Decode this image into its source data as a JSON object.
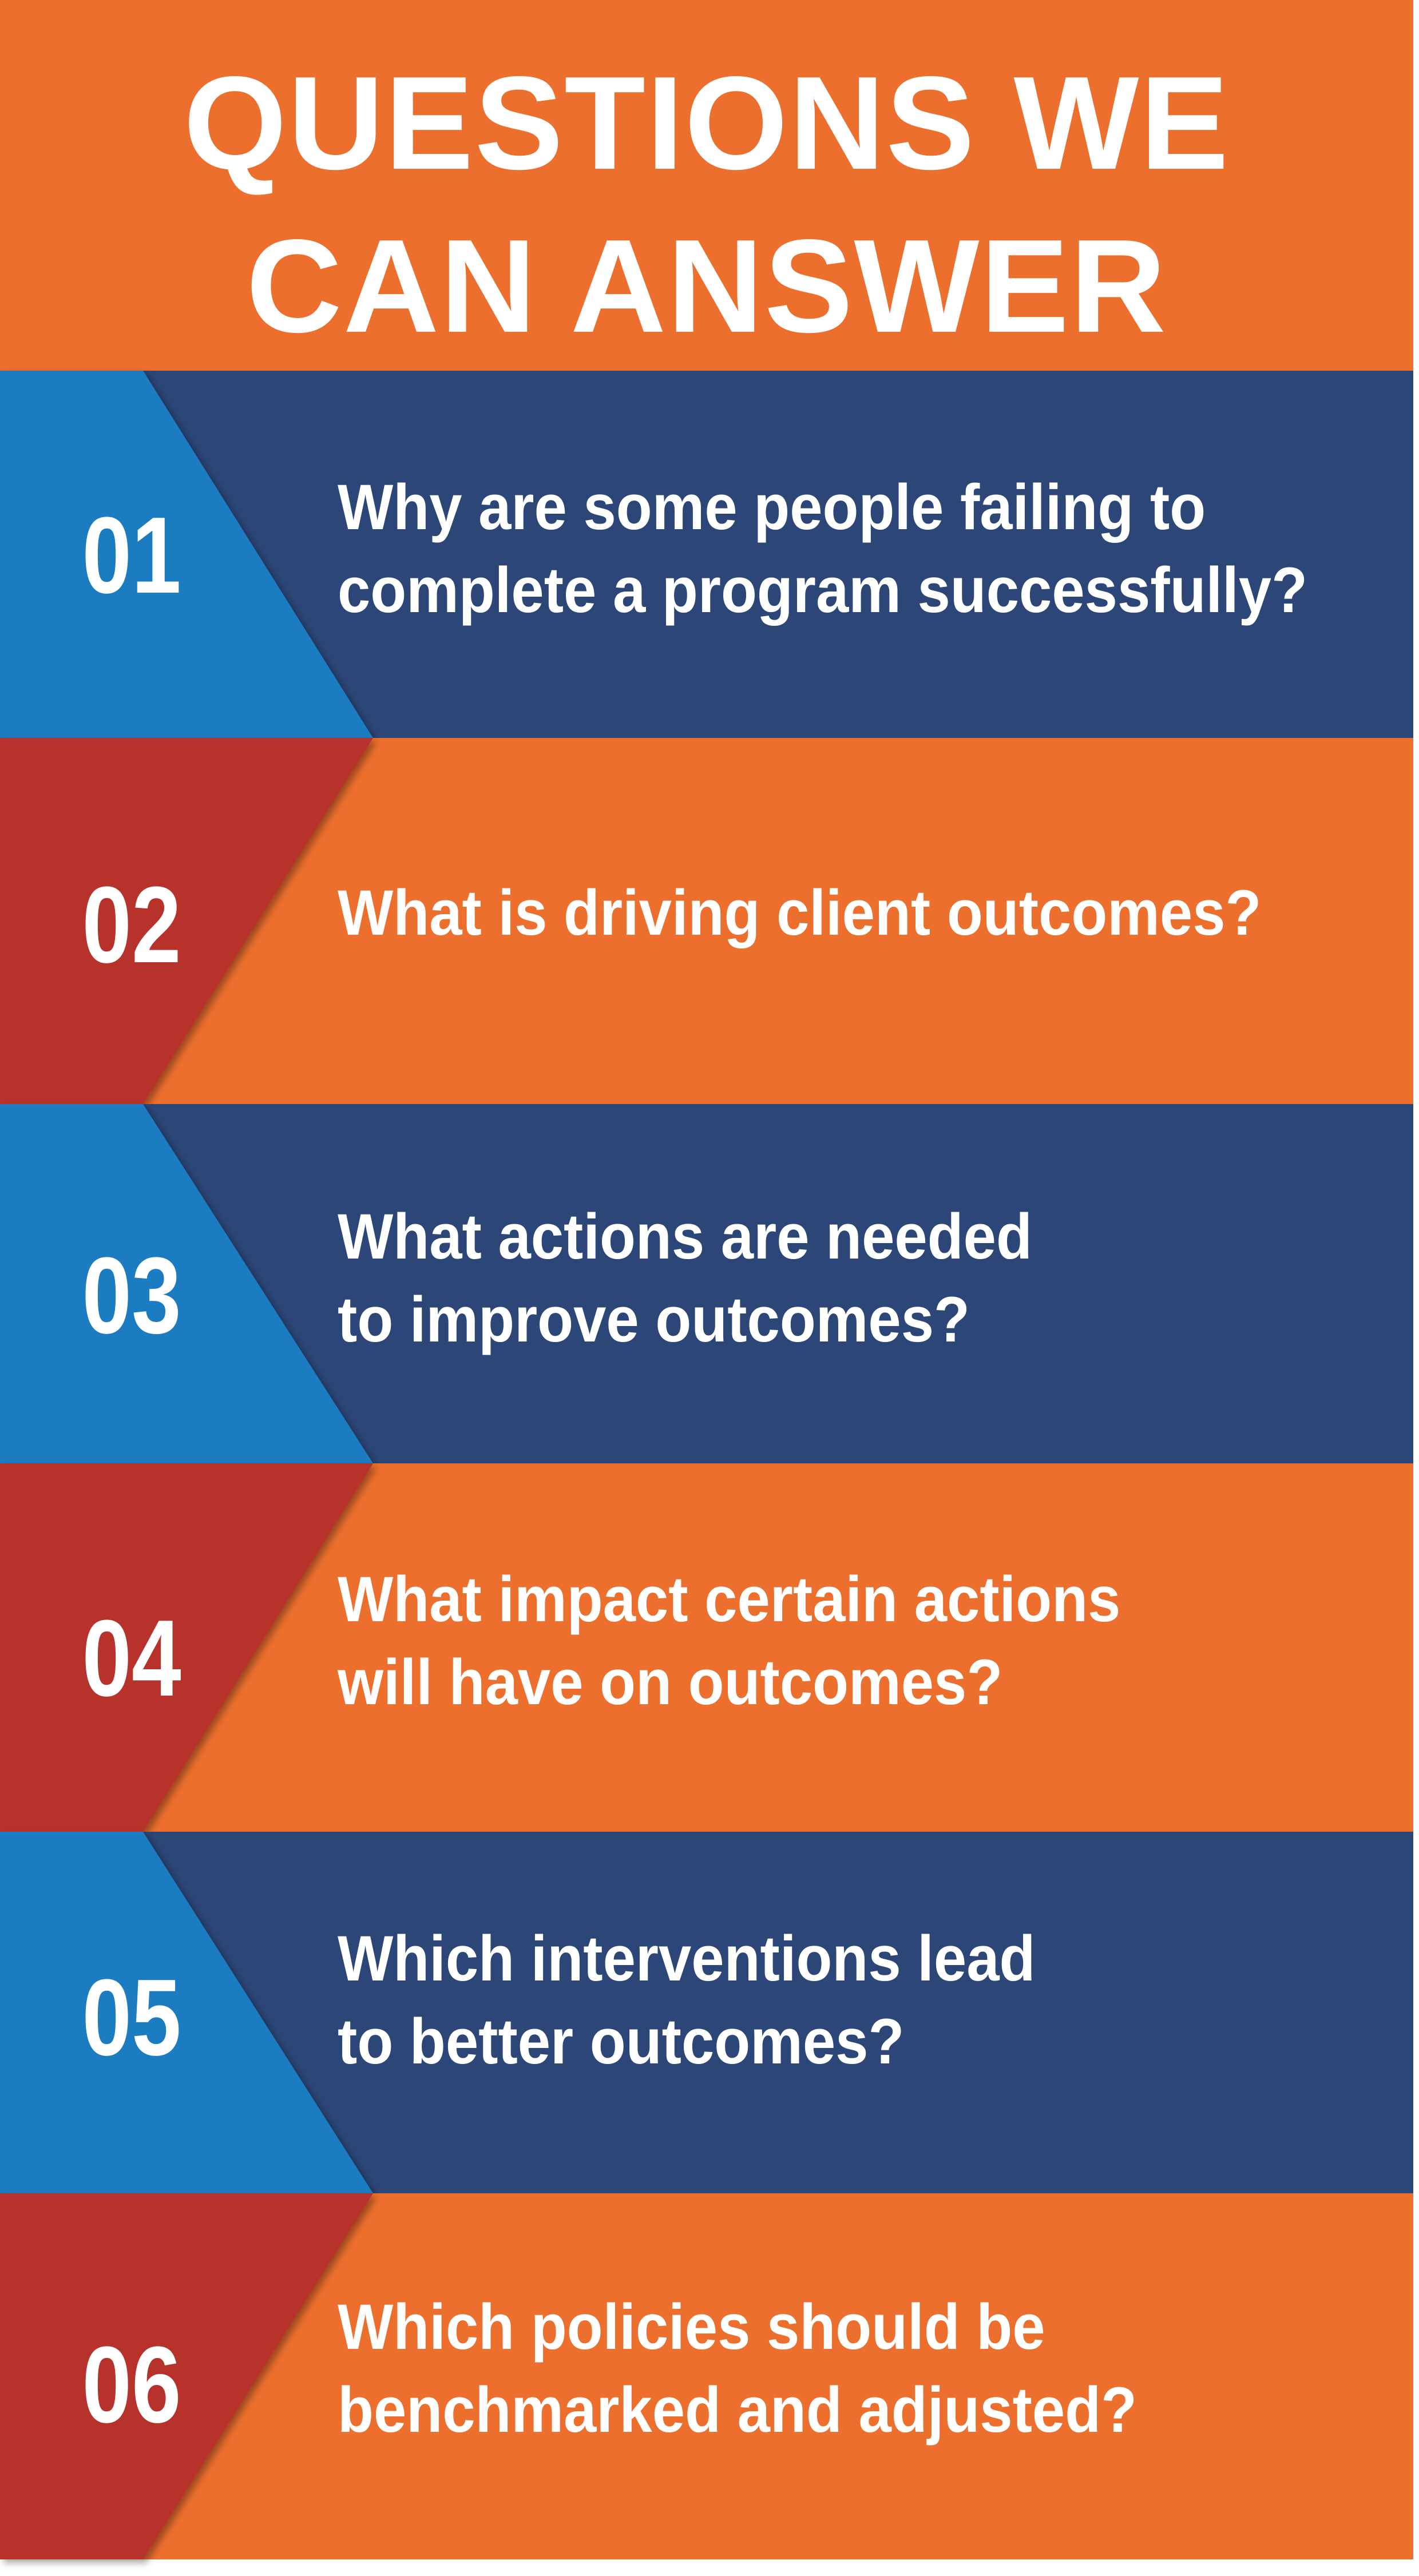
{
  "title": {
    "line1": "QUESTIONS WE",
    "line2": "CAN ANSWER"
  },
  "colors": {
    "header_orange": "#ec6f2d",
    "navy": "#2b4677",
    "light_blue": "#1f7bc1",
    "deep_red": "#b7302a",
    "orange": "#ec6f2d",
    "text": "#ffffff"
  },
  "questions": [
    {
      "number": "01",
      "line1": "Why are some people failing to",
      "line2": "complete a program successfully?",
      "scheme": "blue"
    },
    {
      "number": "02",
      "line1": "What is driving client outcomes?",
      "line2": "",
      "scheme": "orange"
    },
    {
      "number": "03",
      "line1": "What actions are needed",
      "line2": "to improve outcomes?",
      "scheme": "blue"
    },
    {
      "number": "04",
      "line1": "What impact certain actions",
      "line2": "will have on outcomes?",
      "scheme": "orange"
    },
    {
      "number": "05",
      "line1": "Which interventions lead",
      "line2": "to better outcomes?",
      "scheme": "blue"
    },
    {
      "number": "06",
      "line1": "Which policies should be",
      "line2": "benchmarked and adjusted?",
      "scheme": "orange"
    }
  ]
}
